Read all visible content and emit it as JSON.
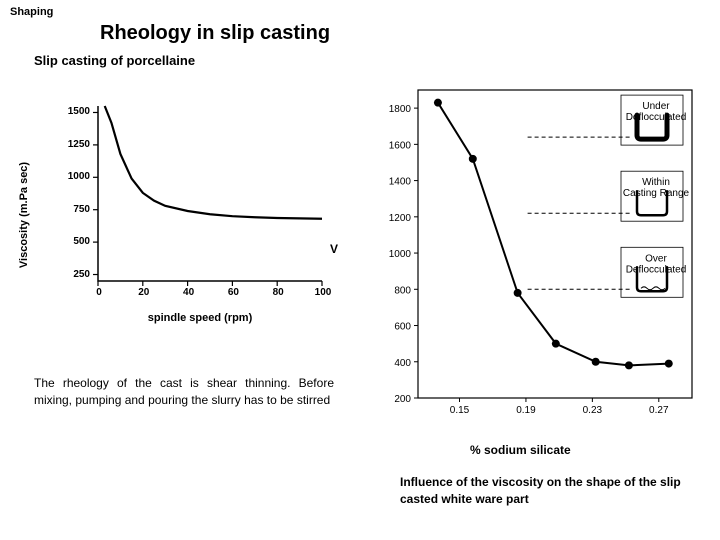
{
  "header": "Shaping",
  "title": "Rheology in slip casting",
  "subtitle": "Slip casting of porcellaine",
  "left_chart": {
    "type": "line",
    "xlabel": "spindle speed (rpm)",
    "ylabel": "Viscosity (m.Pa sec)",
    "xlim": [
      0,
      100
    ],
    "ylim": [
      200,
      1550
    ],
    "xticks": [
      0,
      20,
      40,
      60,
      80,
      100
    ],
    "yticks": [
      250,
      500,
      750,
      1000,
      1250,
      1500
    ],
    "line_color": "#000000",
    "line_width": 2.2,
    "data": [
      [
        3,
        1550
      ],
      [
        6,
        1420
      ],
      [
        10,
        1180
      ],
      [
        15,
        990
      ],
      [
        20,
        880
      ],
      [
        25,
        820
      ],
      [
        30,
        780
      ],
      [
        40,
        740
      ],
      [
        50,
        715
      ],
      [
        60,
        700
      ],
      [
        70,
        692
      ],
      [
        80,
        686
      ],
      [
        90,
        683
      ],
      [
        100,
        680
      ]
    ]
  },
  "v_mark": "V",
  "right_chart": {
    "type": "line-with-diagrams",
    "xlabel": "% sodium silicate",
    "ylim": [
      200,
      1900
    ],
    "yticks": [
      200,
      400,
      600,
      800,
      1000,
      1200,
      1400,
      1600,
      1800
    ],
    "xticks": [
      0.15,
      0.19,
      0.23,
      0.27
    ],
    "line_color": "#000000",
    "line_width": 2,
    "marker_radius": 4,
    "data": [
      [
        0.137,
        1830
      ],
      [
        0.158,
        1520
      ],
      [
        0.185,
        780
      ],
      [
        0.208,
        500
      ],
      [
        0.232,
        400
      ],
      [
        0.252,
        380
      ],
      [
        0.276,
        390
      ]
    ],
    "diagrams": [
      {
        "label": "Under\nDeflocculated",
        "ylevel": 1640,
        "thick": true
      },
      {
        "label": "Within\nCasting Range",
        "ylevel": 1220,
        "thick": false
      },
      {
        "label": "Over\nDeflocculated",
        "ylevel": 800,
        "thick": false,
        "wavy": true
      }
    ]
  },
  "captions": {
    "left": "The rheology of the cast is shear thinning. Before   mixing, pumping and pouring the slurry has to be stirred",
    "right_label": "% sodium silicate",
    "right": "Influence of the viscosity on the shape of the slip casted white ware part"
  },
  "colors": {
    "bg": "#ffffff",
    "fg": "#000000"
  }
}
